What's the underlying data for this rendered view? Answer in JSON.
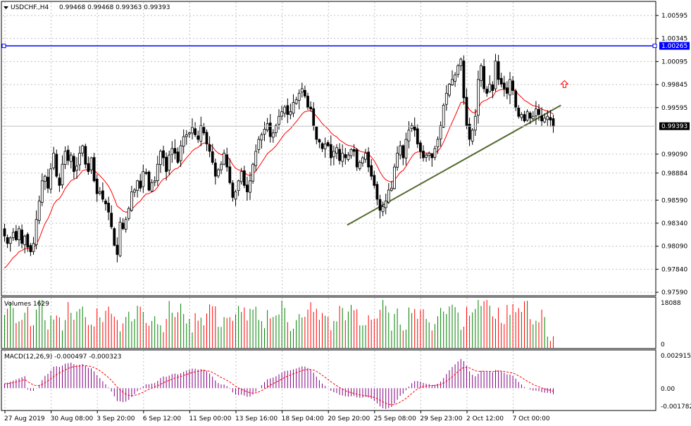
{
  "chart_data": {
    "type": "candlestick",
    "header": {
      "symbol": "USDCHF.,H4",
      "ohlc": "0.99468 0.99468 0.99363 0.99393"
    },
    "price_axis": {
      "labels": [
        "1.00595",
        "1.00345",
        "1.00095",
        "0.99845",
        "0.99595",
        "0.99090",
        "0.98884",
        "0.98590",
        "0.98340",
        "0.98090",
        "0.97840",
        "0.97590"
      ],
      "ylim": [
        0.9756,
        1.0074
      ]
    },
    "horizontal_line": {
      "value": 1.00265,
      "label": "1.00265",
      "color": "#0000ff"
    },
    "current_price": {
      "value": 0.99393,
      "label": "0.99393"
    },
    "trendline": {
      "start": {
        "bar": 119,
        "price": 0.9832
      },
      "end": {
        "bar": 193,
        "price": 0.9962
      },
      "color": "#556b2f"
    },
    "signal_arrow": {
      "bar": 194,
      "price": 0.9985,
      "direction": "up",
      "color": "#ff0000"
    },
    "x_axis": {
      "labels": [
        {
          "bar": 0,
          "text": "27 Aug 2019"
        },
        {
          "bar": 16,
          "text": "30 Aug 08:00"
        },
        {
          "bar": 32,
          "text": "3 Sep 20:00"
        },
        {
          "bar": 48,
          "text": "6 Sep 12:00"
        },
        {
          "bar": 64,
          "text": "11 Sep 00:00"
        },
        {
          "bar": 80,
          "text": "13 Sep 16:00"
        },
        {
          "bar": 96,
          "text": "18 Sep 04:00"
        },
        {
          "bar": 112,
          "text": "20 Sep 20:00"
        },
        {
          "bar": 128,
          "text": "25 Sep 08:00"
        },
        {
          "bar": 144,
          "text": "29 Sep 23:00"
        },
        {
          "bar": 160,
          "text": "2 Oct 12:00"
        },
        {
          "bar": 176,
          "text": "7 Oct 00:00"
        }
      ]
    },
    "closes": [
      0.982,
      0.9812,
      0.9818,
      0.9824,
      0.9816,
      0.9828,
      0.9812,
      0.982,
      0.9808,
      0.9803,
      0.9812,
      0.9838,
      0.9858,
      0.988,
      0.9885,
      0.9872,
      0.9893,
      0.991,
      0.9885,
      0.9875,
      0.9898,
      0.9912,
      0.9902,
      0.9908,
      0.989,
      0.9896,
      0.991,
      0.9918,
      0.9898,
      0.989,
      0.9905,
      0.988,
      0.9866,
      0.9868,
      0.986,
      0.9855,
      0.9846,
      0.983,
      0.981,
      0.98,
      0.9835,
      0.9828,
      0.9838,
      0.985,
      0.9868,
      0.987,
      0.988,
      0.9872,
      0.989,
      0.9888,
      0.987,
      0.9878,
      0.988,
      0.9898,
      0.9912,
      0.9905,
      0.989,
      0.9908,
      0.9915,
      0.991,
      0.99,
      0.9918,
      0.9928,
      0.993,
      0.9932,
      0.9938,
      0.993,
      0.9925,
      0.994,
      0.9932,
      0.992,
      0.9912,
      0.99,
      0.9885,
      0.9892,
      0.9898,
      0.991,
      0.9895,
      0.9878,
      0.9862,
      0.9868,
      0.988,
      0.989,
      0.9875,
      0.9868,
      0.988,
      0.9898,
      0.9912,
      0.9925,
      0.993,
      0.9936,
      0.9942,
      0.9928,
      0.9932,
      0.994,
      0.995,
      0.9955,
      0.996,
      0.9952,
      0.9955,
      0.9965,
      0.9968,
      0.9975,
      0.998,
      0.9972,
      0.996,
      0.9958,
      0.994,
      0.9925,
      0.9922,
      0.9915,
      0.992,
      0.9918,
      0.9905,
      0.9912,
      0.9916,
      0.9902,
      0.991,
      0.9905,
      0.9908,
      0.9914,
      0.9912,
      0.9895,
      0.99,
      0.9905,
      0.991,
      0.9895,
      0.9885,
      0.9875,
      0.986,
      0.9848,
      0.9852,
      0.9858,
      0.987,
      0.9872,
      0.9895,
      0.991,
      0.9918,
      0.9905,
      0.9925,
      0.9935,
      0.994,
      0.9935,
      0.992,
      0.9912,
      0.9905,
      0.9908,
      0.991,
      0.9905,
      0.9915,
      0.9925,
      0.994,
      0.9962,
      0.9975,
      0.9985,
      0.999,
      0.9995,
      1.0005,
      1.0012,
      0.997,
      0.994,
      0.9925,
      0.9935,
      0.995,
      0.999,
      1.0005,
      0.998,
      0.9975,
      0.9985,
      0.9978,
      1.001,
      0.999,
      0.9985,
      0.998,
      0.9975,
      0.999,
      0.9978,
      0.996,
      0.995,
      0.9952,
      0.9945,
      0.9955,
      0.9948,
      0.995,
      0.9958,
      0.9952,
      0.9945,
      0.9948,
      0.995,
      0.9946,
      0.9939
    ],
    "volume": {
      "title": "Volumes 1629",
      "axis_labels": [
        "18088",
        "0"
      ],
      "max": 18088
    },
    "macd": {
      "title": "MACD(12,26,9) -0.000497 -0.000323",
      "axis_labels": [
        "0.002915",
        "0.00",
        "-0.001782"
      ],
      "ylim": [
        -0.001782,
        0.002915
      ]
    },
    "colors": {
      "bull_body": "#ffffff",
      "bear_body": "#000000",
      "ma": "#ff0000",
      "volume_up": "#008000",
      "volume_down": "#ff0000",
      "macd_hist": "#800080",
      "macd_signal": "#ff0000",
      "grid": "#c0c0c0"
    }
  }
}
